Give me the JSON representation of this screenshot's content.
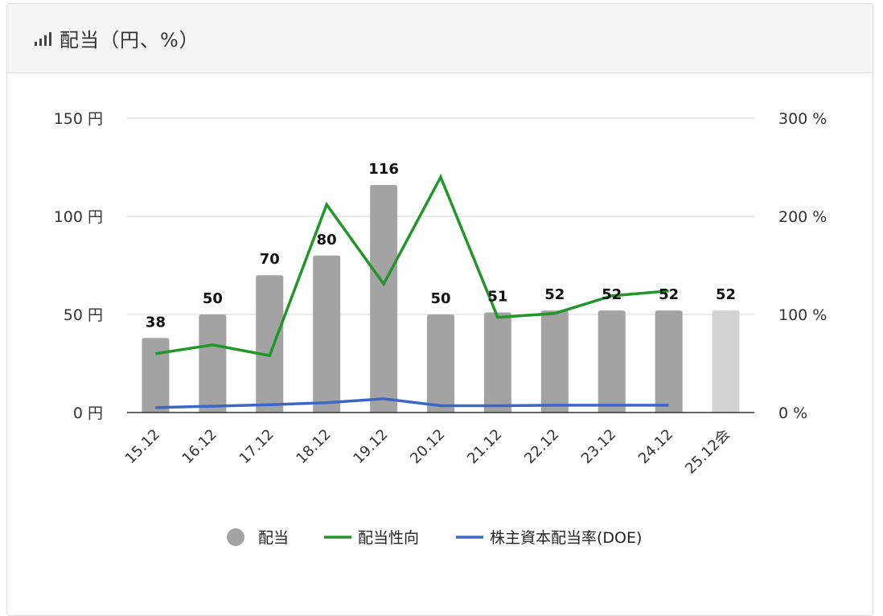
{
  "panel": {
    "title": "配当（円、%）",
    "icon": "signal-bars-icon"
  },
  "chart_data": {
    "type": "bar",
    "categories": [
      "15.12",
      "16.12",
      "17.12",
      "18.12",
      "19.12",
      "20.12",
      "21.12",
      "22.12",
      "23.12",
      "24.12",
      "25.12会"
    ],
    "series": [
      {
        "name": "配当",
        "type": "bar",
        "axis": "left",
        "values": [
          38,
          50,
          70,
          80,
          116,
          50,
          51,
          52,
          52,
          52,
          52
        ],
        "labels": [
          "38",
          "50",
          "70",
          "80",
          "116",
          "50",
          "51",
          "52",
          "52",
          "52",
          "52"
        ],
        "color": "#a3a3a3",
        "forecast_color": "#d3d3d3",
        "forecast_index": 10
      },
      {
        "name": "配当性向",
        "type": "line",
        "axis": "right",
        "values": [
          60,
          69,
          58,
          212,
          131,
          240,
          97,
          101,
          119,
          124,
          null
        ],
        "color": "#22962a"
      },
      {
        "name": "株主資本配当率(DOE)",
        "type": "line",
        "axis": "right",
        "values": [
          5,
          6.5,
          8,
          10,
          14,
          7,
          7,
          7.5,
          7.5,
          7.5,
          null
        ],
        "color": "#3b67c8"
      }
    ],
    "left_axis": {
      "ylim": [
        0,
        150
      ],
      "ticks": [
        "0 円",
        "50 円",
        "100 円",
        "150 円"
      ]
    },
    "right_axis": {
      "ylim": [
        0,
        300
      ],
      "ticks": [
        "0 %",
        "100 %",
        "200 %",
        "300 %"
      ]
    },
    "grid": true,
    "legend": [
      {
        "label": "配当",
        "marker": "circle",
        "color": "#a3a3a3"
      },
      {
        "label": "配当性向",
        "marker": "line",
        "color": "#22962a"
      },
      {
        "label": "株主資本配当率(DOE)",
        "marker": "line",
        "color": "#3b67c8"
      }
    ],
    "legend_position": "bottom"
  }
}
